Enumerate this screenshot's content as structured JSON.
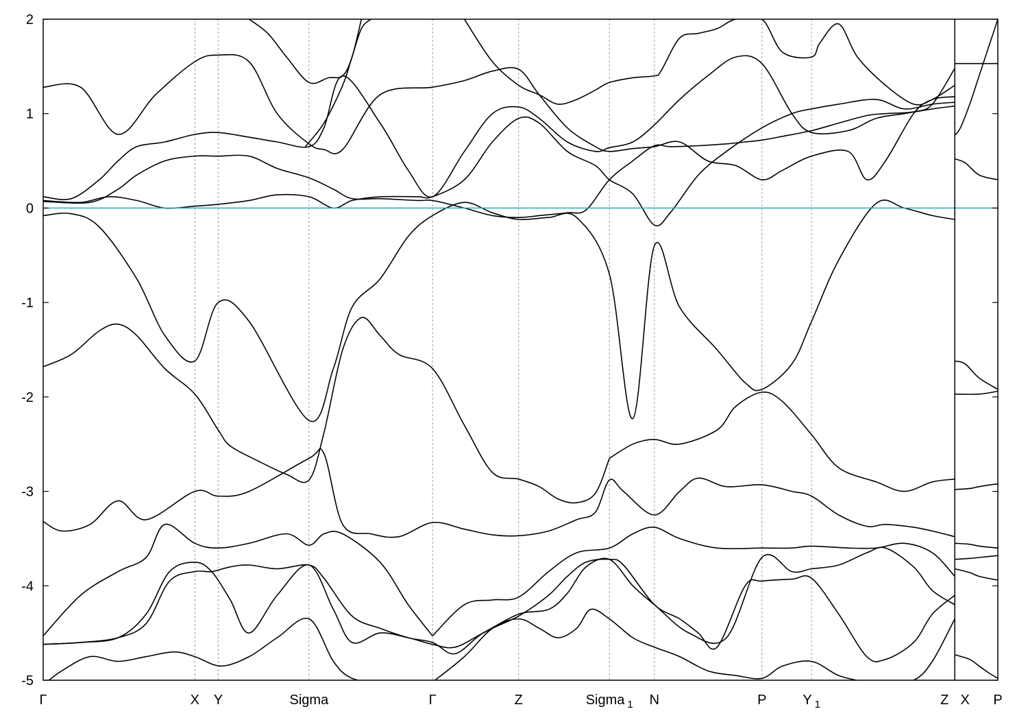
{
  "chart_data": {
    "type": "line",
    "title": "",
    "xlabel": "",
    "ylabel": "",
    "ylim": [
      -5,
      2
    ],
    "y_ticks": [
      -5,
      -4,
      -3,
      -2,
      -1,
      0,
      1,
      2
    ],
    "fermi_level": 0,
    "fermi_color": "#2fa6c0",
    "band_color": "#000000",
    "grid": false,
    "kpath": {
      "range": [
        0,
        10.2
      ],
      "points": [
        {
          "label": "Γ",
          "sub": "",
          "x": 0
        },
        {
          "label": "X",
          "sub": "",
          "x": 1.62
        },
        {
          "label": "Y",
          "sub": "",
          "x": 1.87
        },
        {
          "label": "Sigma",
          "sub": "",
          "x": 2.84
        },
        {
          "label": "Γ",
          "sub": "",
          "x": 4.16
        },
        {
          "label": "Z",
          "sub": "",
          "x": 5.08
        },
        {
          "label": "Sigma",
          "sub": "1",
          "x": 6.05
        },
        {
          "label": "N",
          "sub": "",
          "x": 6.53
        },
        {
          "label": "P",
          "sub": "",
          "x": 7.68
        },
        {
          "label": "Y",
          "sub": "1",
          "x": 8.21
        },
        {
          "label": "Z",
          "sub": "",
          "x": 9.74
        },
        {
          "label": "X",
          "sub": "",
          "x": 9.74
        },
        {
          "label": "P",
          "sub": "",
          "x": 10.2
        }
      ],
      "path_break_at": 9.74
    },
    "series": [
      {
        "x": [
          0,
          0.3,
          0.6,
          1.0,
          1.3,
          1.62,
          1.87,
          2.2,
          2.84,
          3.1,
          3.3,
          3.6,
          3.9,
          4.16,
          4.5,
          4.8,
          5.08,
          5.4,
          5.7,
          6.05,
          6.3,
          6.53,
          6.8,
          7.2,
          7.5,
          7.68,
          8.0,
          8.21,
          8.5,
          8.9,
          9.2,
          9.5,
          9.74
        ],
        "y": [
          -0.08,
          -0.06,
          -0.2,
          -0.75,
          -1.35,
          -1.62,
          -1.0,
          -1.2,
          -2.25,
          -1.7,
          -1.05,
          -0.75,
          -0.3,
          -0.08,
          0.06,
          -0.05,
          -0.12,
          -0.1,
          -0.1,
          -0.7,
          -2.23,
          -0.4,
          -1.05,
          -1.5,
          -1.85,
          -1.92,
          -1.65,
          -1.2,
          -0.55,
          0.05,
          0.0,
          -0.08,
          -0.12
        ]
      },
      {
        "x": [
          0,
          0.3,
          0.6,
          0.8,
          1.0,
          1.3,
          1.62,
          1.87,
          2.0,
          2.3,
          2.6,
          2.84,
          3.0,
          3.2,
          3.4,
          3.6,
          3.8,
          4.16,
          4.5,
          4.8,
          5.08,
          5.3,
          5.5,
          5.7,
          5.9,
          6.05
        ],
        "y": [
          -1.68,
          -1.55,
          -1.3,
          -1.23,
          -1.35,
          -1.7,
          -1.97,
          -2.35,
          -2.52,
          -2.68,
          -2.82,
          -2.88,
          -2.38,
          -1.5,
          -1.16,
          -1.35,
          -1.55,
          -1.7,
          -2.3,
          -2.8,
          -2.87,
          -2.95,
          -3.08,
          -3.12,
          -3.02,
          -2.65
        ]
      },
      {
        "x": [
          6.05,
          6.3,
          6.53,
          6.8,
          7.2,
          7.4,
          7.68,
          7.9,
          8.21,
          8.5,
          8.9,
          9.2,
          9.5,
          9.74
        ],
        "y": [
          -2.65,
          -2.5,
          -2.45,
          -2.5,
          -2.35,
          -2.1,
          -1.95,
          -2.05,
          -2.4,
          -2.75,
          -2.9,
          -3.0,
          -2.9,
          -2.87
        ]
      },
      {
        "x": [
          0,
          0.2,
          0.5,
          0.8,
          1.1,
          1.62,
          1.87,
          2.2,
          2.84,
          3.0,
          3.2,
          3.5,
          3.8,
          4.16,
          4.5,
          4.8,
          5.08,
          5.4,
          5.7,
          5.9,
          6.05,
          6.2,
          6.53,
          6.8,
          7.0,
          7.3,
          7.68,
          8.0,
          8.21,
          8.5,
          8.8,
          9.0,
          9.3,
          9.5,
          9.74
        ],
        "y": [
          -3.32,
          -3.42,
          -3.35,
          -3.1,
          -3.3,
          -3.0,
          -3.05,
          -3.0,
          -2.65,
          -2.6,
          -3.35,
          -3.45,
          -3.48,
          -3.33,
          -3.4,
          -3.46,
          -3.47,
          -3.42,
          -3.3,
          -3.22,
          -2.88,
          -3.0,
          -3.25,
          -3.0,
          -2.86,
          -2.95,
          -2.93,
          -3.0,
          -3.05,
          -3.25,
          -3.37,
          -3.35,
          -3.38,
          -3.42,
          -3.48
        ]
      },
      {
        "x": [
          0,
          0.4,
          0.8,
          1.1,
          1.3,
          1.62,
          1.87,
          2.2,
          2.6,
          2.84,
          3.0,
          3.2,
          3.6,
          3.9,
          4.16
        ],
        "y": [
          -4.53,
          -4.1,
          -3.85,
          -3.7,
          -3.35,
          -3.55,
          -3.6,
          -3.55,
          -3.45,
          -3.57,
          -3.45,
          -3.45,
          -3.75,
          -4.2,
          -4.53
        ]
      },
      {
        "x": [
          4.16,
          4.5,
          4.8,
          5.08,
          5.4,
          5.7,
          6.05,
          6.3,
          6.53,
          6.8,
          7.2,
          7.68,
          8.0,
          8.21,
          8.6,
          8.9,
          9.2,
          9.5,
          9.74
        ],
        "y": [
          -4.53,
          -4.2,
          -4.15,
          -4.12,
          -3.85,
          -3.65,
          -3.6,
          -3.45,
          -3.38,
          -3.5,
          -3.6,
          -3.6,
          -3.6,
          -3.58,
          -3.6,
          -3.6,
          -3.55,
          -3.65,
          -3.9
        ]
      },
      {
        "x": [
          0,
          0.4,
          0.8,
          1.1,
          1.35,
          1.62,
          1.8,
          2.0,
          2.2,
          2.5,
          2.84,
          3.1,
          3.3,
          3.6,
          3.9,
          4.16,
          4.4,
          4.7,
          5.08,
          5.4,
          5.6,
          5.8,
          6.05,
          6.3,
          6.53,
          6.9,
          7.3,
          7.68,
          8.0,
          8.21,
          8.5,
          8.8,
          9.0,
          9.3,
          9.5,
          9.74
        ],
        "y": [
          -4.62,
          -4.6,
          -4.55,
          -4.3,
          -3.85,
          -3.75,
          -3.85,
          -4.15,
          -4.5,
          -4.1,
          -3.78,
          -4.25,
          -4.6,
          -4.5,
          -4.55,
          -4.62,
          -4.65,
          -4.5,
          -4.3,
          -4.25,
          -4.08,
          -3.8,
          -3.72,
          -4.0,
          -4.2,
          -4.5,
          -4.55,
          -3.7,
          -3.85,
          -3.82,
          -3.78,
          -3.65,
          -3.6,
          -3.8,
          -4.05,
          -4.2
        ]
      },
      {
        "x": [
          0,
          0.4,
          0.8,
          1.1,
          1.35,
          1.62,
          1.8,
          2.0,
          2.2,
          2.5,
          2.84,
          3.0,
          3.3,
          3.6,
          3.9,
          4.16,
          4.4,
          4.7,
          5.08,
          5.4,
          5.6,
          5.8,
          6.05,
          6.2,
          6.53,
          6.8,
          7.0,
          7.2,
          7.5,
          7.68,
          8.0,
          8.21,
          8.5,
          8.8,
          9.0,
          9.3,
          9.5,
          9.74
        ],
        "y": [
          -4.62,
          -4.6,
          -4.55,
          -4.4,
          -3.95,
          -3.85,
          -3.85,
          -3.8,
          -3.78,
          -3.82,
          -3.78,
          -3.92,
          -4.32,
          -4.45,
          -4.55,
          -4.6,
          -4.72,
          -4.5,
          -4.32,
          -4.1,
          -3.9,
          -3.75,
          -3.72,
          -3.78,
          -4.2,
          -4.35,
          -4.5,
          -4.65,
          -4.0,
          -3.95,
          -3.93,
          -3.92,
          -4.3,
          -4.75,
          -4.78,
          -4.6,
          -4.3,
          -4.1
        ]
      },
      {
        "x": [
          0,
          0.2,
          0.5,
          0.8,
          1.1,
          1.4,
          1.62,
          1.9,
          2.2,
          2.5,
          2.84,
          3.1,
          3.3,
          3.6,
          3.9,
          4.16
        ],
        "y": [
          -5.05,
          -4.9,
          -4.75,
          -4.8,
          -4.75,
          -4.7,
          -4.75,
          -4.85,
          -4.75,
          -4.55,
          -4.35,
          -4.8,
          -4.98,
          -5.02,
          -5.03,
          -5.05
        ]
      },
      {
        "x": [
          4.16,
          4.5,
          4.8,
          5.08,
          5.3,
          5.5,
          5.7,
          5.85,
          6.05,
          6.3,
          6.53,
          6.8,
          7.1,
          7.4,
          7.68,
          7.9,
          8.21,
          8.5,
          8.8,
          9.0,
          9.3,
          9.5,
          9.74
        ],
        "y": [
          -5.02,
          -4.75,
          -4.45,
          -4.35,
          -4.45,
          -4.55,
          -4.45,
          -4.25,
          -4.35,
          -4.55,
          -4.65,
          -4.75,
          -4.9,
          -4.95,
          -4.98,
          -4.85,
          -4.8,
          -4.95,
          -5.02,
          -5.03,
          -5.0,
          -4.8,
          -4.35
        ]
      },
      {
        "x": [
          0,
          0.4,
          0.7,
          1.0,
          1.3,
          1.62,
          1.87,
          2.2,
          2.5,
          2.84,
          3.1,
          3.3,
          3.6,
          4.0,
          4.16,
          4.5,
          4.8,
          5.08,
          5.3,
          5.6,
          5.9,
          6.05,
          6.3,
          6.53,
          6.7,
          7.0,
          7.3,
          7.68,
          8.0,
          8.21,
          8.5,
          8.9,
          9.2,
          9.5,
          9.74
        ],
        "y": [
          0.08,
          0.06,
          0.12,
          0.08,
          0.0,
          0.02,
          0.04,
          0.08,
          0.14,
          0.12,
          0.0,
          0.08,
          0.12,
          0.12,
          0.12,
          0.3,
          0.7,
          0.95,
          0.9,
          0.6,
          0.45,
          0.3,
          0.15,
          -0.18,
          -0.05,
          0.35,
          0.6,
          0.85,
          1.0,
          1.05,
          1.1,
          1.15,
          1.05,
          1.1,
          1.12
        ]
      },
      {
        "x": [
          0,
          0.3,
          0.6,
          0.8,
          1.0,
          1.3,
          1.62,
          1.87,
          2.2,
          2.5,
          2.84,
          3.0,
          3.2,
          3.6,
          3.9,
          4.16,
          4.5,
          4.8,
          5.08,
          5.3,
          5.6,
          5.9,
          6.05,
          6.3,
          6.53,
          6.8,
          7.1,
          7.4,
          7.68,
          8.0,
          8.21,
          8.6,
          8.9,
          9.2,
          9.5,
          9.74
        ],
        "y": [
          0.12,
          0.1,
          0.3,
          0.5,
          0.65,
          0.7,
          0.78,
          0.8,
          0.75,
          0.7,
          0.65,
          0.85,
          1.4,
          0.9,
          0.4,
          0.12,
          0.6,
          1.0,
          1.07,
          0.95,
          0.7,
          0.6,
          0.64,
          0.7,
          0.88,
          1.15,
          1.4,
          1.6,
          1.53,
          1.0,
          0.8,
          0.82,
          0.95,
          1.0,
          1.05,
          1.08
        ]
      },
      {
        "x": [
          0,
          0.4,
          0.8,
          1.2,
          1.62,
          1.87,
          2.2,
          2.5,
          2.84,
          3.0,
          3.2,
          3.6,
          4.16,
          4.5,
          4.8,
          5.08,
          5.3,
          5.6,
          5.9,
          6.05,
          6.3,
          6.53,
          6.8,
          7.1,
          7.4,
          7.68,
          7.9,
          8.21,
          8.6,
          8.8,
          9.0,
          9.3,
          9.5,
          9.74
        ],
        "y": [
          1.28,
          1.28,
          0.78,
          1.2,
          1.55,
          1.62,
          1.55,
          1.0,
          0.68,
          0.62,
          0.62,
          1.2,
          1.28,
          1.35,
          1.45,
          1.47,
          1.2,
          0.85,
          0.65,
          0.6,
          0.63,
          0.65,
          0.7,
          0.5,
          0.45,
          0.3,
          0.4,
          0.55,
          0.6,
          0.3,
          0.5,
          1.0,
          1.15,
          1.18
        ]
      },
      {
        "x": [
          0,
          0.5,
          0.8,
          1.0,
          1.3,
          1.62,
          1.87,
          2.2,
          2.5,
          2.84,
          3.1,
          3.3,
          3.6,
          4.0,
          4.16,
          4.5,
          4.8,
          5.08,
          5.3,
          5.6,
          5.8,
          6.05,
          6.3,
          6.53,
          6.7,
          7.0,
          7.3,
          7.5,
          7.68,
          7.9,
          8.21,
          8.5,
          8.8,
          9.0,
          9.3,
          9.5,
          9.74
        ],
        "y": [
          0.07,
          0.06,
          0.2,
          0.35,
          0.5,
          0.55,
          0.55,
          0.55,
          0.42,
          0.32,
          0.2,
          0.1,
          0.1,
          0.08,
          0.08,
          0.0,
          -0.08,
          -0.1,
          -0.08,
          -0.05,
          -0.02,
          0.3,
          0.5,
          0.66,
          0.65,
          0.66,
          0.68,
          0.7,
          0.72,
          0.76,
          0.82,
          0.9,
          0.98,
          1.0,
          1.02,
          1.1,
          1.48
        ]
      },
      {
        "x": [
          2.2,
          2.4,
          2.6,
          2.84,
          3.05,
          3.2,
          3.3,
          3.4
        ],
        "y": [
          2.0,
          1.85,
          1.6,
          1.33,
          1.38,
          1.4,
          1.6,
          2.0
        ]
      },
      {
        "x": [
          4.5,
          4.8,
          5.08,
          5.3,
          5.5,
          5.7,
          5.9,
          6.05,
          6.3,
          6.53,
          6.6,
          6.8,
          7.0,
          7.2,
          7.4,
          7.68,
          7.9,
          8.21,
          8.3,
          8.5,
          8.7,
          9.0,
          9.3,
          9.5,
          9.74
        ],
        "y": [
          2.0,
          1.55,
          1.3,
          1.2,
          1.1,
          1.15,
          1.25,
          1.33,
          1.38,
          1.4,
          1.45,
          1.8,
          1.85,
          1.9,
          2.0,
          2.0,
          1.65,
          1.6,
          1.75,
          1.95,
          1.6,
          1.3,
          1.1,
          1.15,
          1.3
        ]
      },
      {
        "x": [
          2.8,
          3.0,
          3.2,
          3.3,
          3.4,
          3.5
        ],
        "y": [
          0.65,
          0.9,
          1.3,
          1.6,
          1.9,
          2.0
        ]
      },
      {
        "x": [
          9.74,
          9.8,
          9.9,
          10.0,
          10.1,
          10.2
        ],
        "y": [
          0.77,
          0.85,
          1.1,
          1.4,
          1.7,
          2.0
        ]
      },
      {
        "x": [
          9.74,
          10.2
        ],
        "y": [
          1.53,
          1.53
        ]
      },
      {
        "x": [
          9.74,
          9.85,
          10.0,
          10.2
        ],
        "y": [
          0.52,
          0.48,
          0.35,
          0.3
        ]
      },
      {
        "x": [
          9.74,
          9.85,
          10.0,
          10.2
        ],
        "y": [
          -1.62,
          -1.65,
          -1.8,
          -1.92
        ]
      },
      {
        "x": [
          9.74,
          10.0,
          10.2
        ],
        "y": [
          -1.97,
          -1.97,
          -1.94
        ]
      },
      {
        "x": [
          9.74,
          9.9,
          10.0,
          10.2
        ],
        "y": [
          -2.98,
          -2.97,
          -2.95,
          -2.92
        ]
      },
      {
        "x": [
          9.74,
          9.9,
          10.0,
          10.2
        ],
        "y": [
          -3.55,
          -3.56,
          -3.58,
          -3.6
        ]
      },
      {
        "x": [
          9.74,
          9.9,
          10.0,
          10.2
        ],
        "y": [
          -3.72,
          -3.71,
          -3.7,
          -3.68
        ]
      },
      {
        "x": [
          9.74,
          9.9,
          10.0,
          10.2
        ],
        "y": [
          -3.82,
          -3.86,
          -3.9,
          -3.94
        ]
      },
      {
        "x": [
          9.74,
          9.9,
          10.0,
          10.1,
          10.2
        ],
        "y": [
          -4.73,
          -4.78,
          -4.85,
          -4.92,
          -4.98
        ]
      }
    ]
  }
}
